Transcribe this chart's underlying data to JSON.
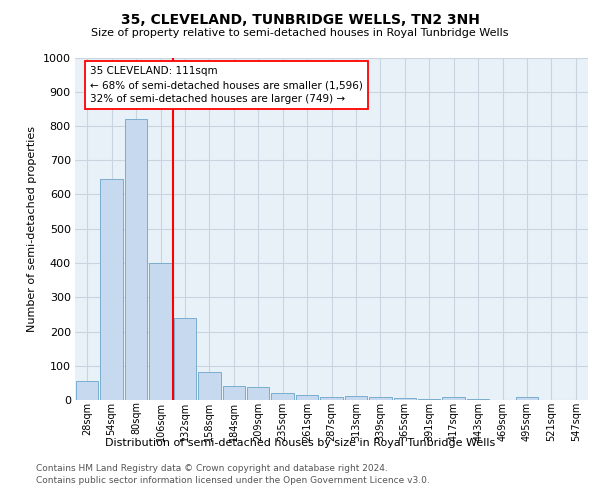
{
  "title": "35, CLEVELAND, TUNBRIDGE WELLS, TN2 3NH",
  "subtitle": "Size of property relative to semi-detached houses in Royal Tunbridge Wells",
  "xlabel_bottom": "Distribution of semi-detached houses by size in Royal Tunbridge Wells",
  "ylabel": "Number of semi-detached properties",
  "footer1": "Contains HM Land Registry data © Crown copyright and database right 2024.",
  "footer2": "Contains public sector information licensed under the Open Government Licence v3.0.",
  "categories": [
    "28sqm",
    "54sqm",
    "80sqm",
    "106sqm",
    "132sqm",
    "158sqm",
    "184sqm",
    "209sqm",
    "235sqm",
    "261sqm",
    "287sqm",
    "313sqm",
    "339sqm",
    "365sqm",
    "391sqm",
    "417sqm",
    "443sqm",
    "469sqm",
    "495sqm",
    "521sqm",
    "547sqm"
  ],
  "values": [
    55,
    645,
    820,
    400,
    240,
    83,
    40,
    37,
    20,
    16,
    10,
    11,
    8,
    7,
    2,
    10,
    2,
    1,
    8,
    1,
    1
  ],
  "bar_color": "#c6d9ee",
  "bar_edge_color": "#7aadce",
  "grid_color": "#c8d4e0",
  "bg_color": "#e8f0f8",
  "vline_bar_idx": 3,
  "vline_color": "red",
  "annotation_title": "35 CLEVELAND: 111sqm",
  "annotation_line1": "← 68% of semi-detached houses are smaller (1,596)",
  "annotation_line2": "32% of semi-detached houses are larger (749) →",
  "ylim": [
    0,
    1000
  ],
  "yticks": [
    0,
    100,
    200,
    300,
    400,
    500,
    600,
    700,
    800,
    900,
    1000
  ]
}
